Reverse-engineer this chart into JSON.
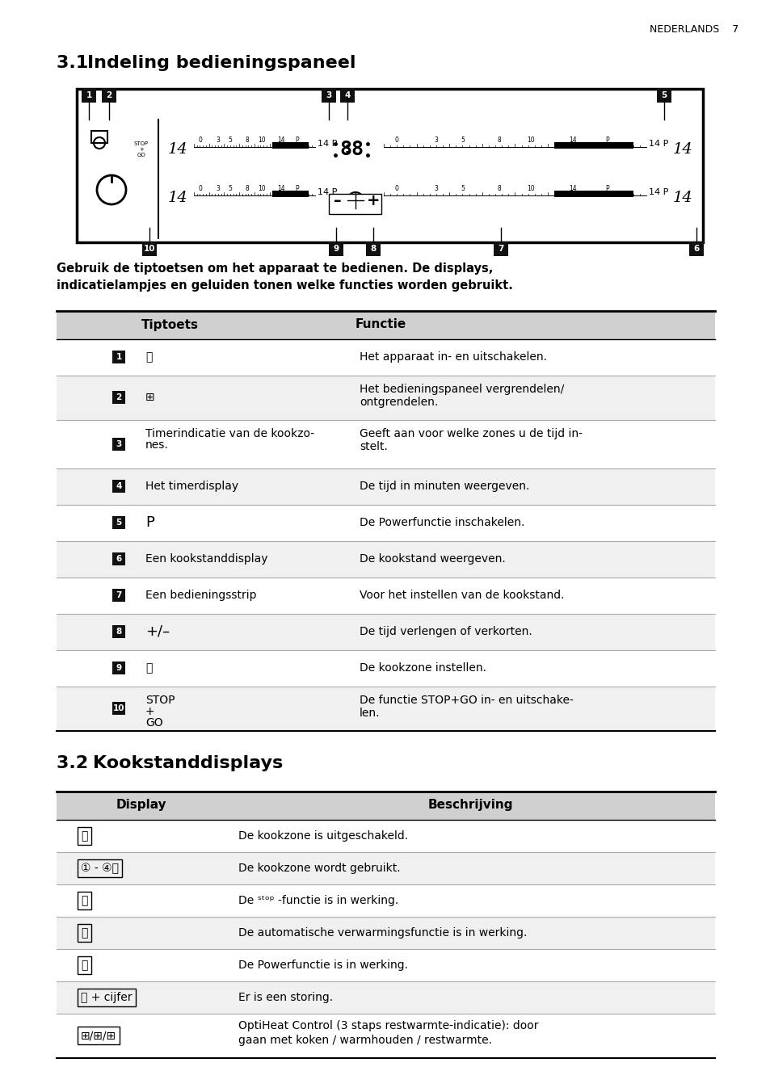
{
  "page_header": "NEDERLANDS    7",
  "section1_title": "3.1 Indeling bedieningspaneel",
  "section2_title": "3.2 Kookstanddisplays",
  "intro_text": "Gebruik de tiptoetsen om het apparaat te bedienen. De displays,\nindicatielampjes en geluiden tonen welke functies worden gebruikt.",
  "table1_header": [
    "Tiptoets",
    "Functie"
  ],
  "table1_rows": [
    [
      "1",
      "ⓞ",
      "Het apparaat in- en uitschakelen."
    ],
    [
      "2",
      "⊞",
      "Het bedieningspaneel vergrendelen/\nontgrendelen."
    ],
    [
      "3",
      "Timerindicatie van de kookzo-\nnes.",
      "Geeft aan voor welke zones u de tijd in-\nstelt."
    ],
    [
      "4",
      "Het timerdisplay",
      "De tijd in minuten weergeven."
    ],
    [
      "5",
      "P",
      "De Powerfunctie inschakelen."
    ],
    [
      "6",
      "Een kookstanddisplay",
      "De kookstand weergeven."
    ],
    [
      "7",
      "Een bedieningsstrip",
      "Voor het instellen van de kookstand."
    ],
    [
      "8",
      "+/–",
      "De tijd verlengen of verkorten."
    ],
    [
      "9",
      "ⓘ",
      "De kookzone instellen."
    ],
    [
      "10",
      "STOP\n+\nGO",
      "De functie STOP+GO in- en uitschake-\nlen."
    ]
  ],
  "table2_header": [
    "Display",
    "Beschrijving"
  ],
  "table2_rows": [
    [
      "⒮",
      "De kookzone is uitgeschakeld."
    ],
    [
      "① - ④⒮",
      "De kookzone wordt gebruikt."
    ],
    [
      "Ⓤ",
      "De ˢᵗᵒᵖ -functie is in werking."
    ],
    [
      "Ⓐ",
      "De automatische verwarmingsfunctie is in werking."
    ],
    [
      "Ⓟ",
      "De Powerfunctie is in werking."
    ],
    [
      "Ⓔ + cijfer",
      "Er is een storing."
    ],
    [
      "⊞/⊞/⊞",
      "OptiHeat Control (3 staps restwarmte-indicatie): door\ngaan met koken / warmhouden / restwarmte."
    ]
  ],
  "bg_color": "#ffffff",
  "text_color": "#000000",
  "header_bg": "#d0d0d0",
  "black_badge_color": "#111111",
  "white_text": "#ffffff",
  "row_alt_color": "#f2f2f2"
}
